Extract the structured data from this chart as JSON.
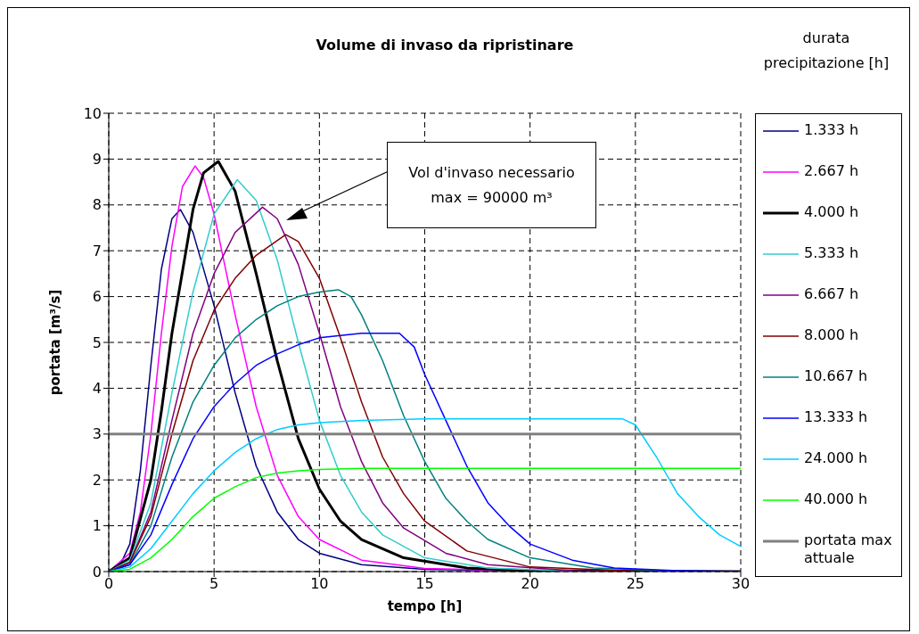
{
  "chart_data": {
    "type": "line",
    "title": "Volume di invaso da ripristinare",
    "xlabel": "tempo [h]",
    "ylabel": "portata [m³/s]",
    "legend_title": "durata precipitazione [h]",
    "legend": "right",
    "grid": true,
    "marker": "none",
    "line_style": "solid",
    "xlim": [
      0,
      30
    ],
    "xticks": [
      0,
      5,
      10,
      15,
      20,
      25,
      30
    ],
    "ylim": [
      0,
      10
    ],
    "yticks": [
      0,
      1,
      2,
      3,
      4,
      5,
      6,
      7,
      8,
      9,
      10
    ],
    "annotations": [
      "Vol d'invaso necessario\nmax = 90000 m³"
    ],
    "series": [
      {
        "name": "1.333 h",
        "color": "#000080",
        "x": [
          0,
          0.5,
          1,
          1.5,
          2,
          2.5,
          3,
          3.4,
          4,
          5,
          6,
          7,
          8,
          9,
          10,
          12,
          15,
          20,
          30
        ],
        "values": [
          0,
          0.1,
          0.6,
          2.2,
          4.5,
          6.6,
          7.7,
          7.9,
          7.4,
          5.8,
          3.9,
          2.3,
          1.3,
          0.7,
          0.4,
          0.15,
          0.05,
          0.01,
          0
        ]
      },
      {
        "name": "2.667 h",
        "color": "#ff00ff",
        "x": [
          0,
          1,
          1.5,
          2,
          2.5,
          3,
          3.5,
          4.1,
          4.5,
          5,
          6,
          7,
          8,
          9,
          10,
          12,
          15,
          20,
          30
        ],
        "values": [
          0,
          0.4,
          1.3,
          3,
          5.2,
          7.1,
          8.4,
          8.85,
          8.6,
          7.8,
          5.6,
          3.6,
          2.1,
          1.2,
          0.7,
          0.25,
          0.07,
          0.01,
          0
        ]
      },
      {
        "name": "4.000 h",
        "color": "#000000",
        "x": [
          0,
          1,
          2,
          2.5,
          3,
          4,
          4.5,
          5.2,
          6,
          7,
          8,
          9,
          10,
          11,
          12,
          14,
          17,
          20,
          30
        ],
        "values": [
          0,
          0.3,
          2,
          3.5,
          5.2,
          7.9,
          8.7,
          8.95,
          8.3,
          6.5,
          4.6,
          2.9,
          1.8,
          1.1,
          0.7,
          0.3,
          0.08,
          0.02,
          0
        ]
      },
      {
        "name": "5.333 h",
        "color": "#33cccc",
        "x": [
          0,
          1,
          2,
          3,
          4,
          5,
          6.1,
          7,
          8,
          9,
          10,
          11,
          12,
          13,
          15,
          18,
          22,
          30
        ],
        "values": [
          0,
          0.25,
          1.5,
          3.9,
          6.1,
          7.8,
          8.55,
          8.1,
          6.8,
          5,
          3.3,
          2.1,
          1.3,
          0.8,
          0.3,
          0.08,
          0.01,
          0
        ]
      },
      {
        "name": "6.667 h",
        "color": "#800080",
        "x": [
          0,
          1,
          2,
          3,
          4,
          5,
          6,
          7.3,
          8,
          9,
          10,
          11,
          12,
          13,
          14,
          16,
          18,
          22,
          30
        ],
        "values": [
          0,
          0.2,
          1.3,
          3.3,
          5.2,
          6.5,
          7.4,
          7.95,
          7.7,
          6.7,
          5.2,
          3.6,
          2.4,
          1.5,
          0.95,
          0.4,
          0.15,
          0.02,
          0
        ]
      },
      {
        "name": "8.000 h",
        "color": "#800000",
        "x": [
          0,
          1,
          2,
          3,
          4,
          5,
          6,
          7,
          8.4,
          9,
          10,
          11,
          12,
          13,
          14,
          15,
          17,
          20,
          25,
          30
        ],
        "values": [
          0,
          0.2,
          1.2,
          3,
          4.6,
          5.7,
          6.4,
          6.9,
          7.35,
          7.2,
          6.4,
          5.1,
          3.7,
          2.5,
          1.7,
          1.1,
          0.45,
          0.1,
          0.01,
          0
        ]
      },
      {
        "name": "10.667 h",
        "color": "#008080",
        "x": [
          0,
          1,
          2,
          3,
          4,
          5,
          6,
          7,
          8,
          9,
          10,
          10.9,
          11.5,
          12,
          13,
          14,
          15,
          16,
          17,
          18,
          20,
          23,
          27,
          30
        ],
        "values": [
          0,
          0.15,
          1,
          2.5,
          3.7,
          4.5,
          5.1,
          5.5,
          5.8,
          6,
          6.1,
          6.15,
          6,
          5.6,
          4.6,
          3.4,
          2.4,
          1.6,
          1.1,
          0.7,
          0.3,
          0.08,
          0.01,
          0
        ]
      },
      {
        "name": "13.333 h",
        "color": "#0000ff",
        "x": [
          0,
          1,
          2,
          3,
          4,
          5,
          6,
          7,
          8,
          9,
          10,
          11,
          12,
          13.8,
          14.5,
          15,
          16,
          17,
          18,
          19,
          20,
          22,
          24,
          27,
          30
        ],
        "values": [
          0,
          0.15,
          0.8,
          1.9,
          2.9,
          3.6,
          4.1,
          4.5,
          4.75,
          4.95,
          5.1,
          5.15,
          5.2,
          5.2,
          4.9,
          4.3,
          3.3,
          2.3,
          1.5,
          1,
          0.6,
          0.25,
          0.08,
          0.02,
          0
        ]
      },
      {
        "name": "24.000 h",
        "color": "#00ccff",
        "x": [
          0,
          1,
          2,
          3,
          4,
          5,
          6,
          7,
          8,
          9,
          10,
          12,
          15,
          24.4,
          25,
          26,
          27,
          28,
          29,
          30
        ],
        "values": [
          0,
          0.1,
          0.5,
          1.1,
          1.7,
          2.2,
          2.6,
          2.9,
          3.1,
          3.2,
          3.25,
          3.3,
          3.33,
          3.33,
          3.2,
          2.5,
          1.7,
          1.2,
          0.8,
          0.55
        ]
      },
      {
        "name": "40.000 h",
        "color": "#00ff00",
        "x": [
          0,
          1,
          2,
          3,
          4,
          5,
          6,
          7,
          8,
          9,
          10,
          12,
          30
        ],
        "values": [
          0,
          0.05,
          0.3,
          0.7,
          1.2,
          1.6,
          1.85,
          2.05,
          2.15,
          2.2,
          2.23,
          2.25,
          2.25
        ]
      },
      {
        "name": "portata max attuale",
        "color": "#808080",
        "x": [
          0,
          30
        ],
        "values": [
          3,
          3
        ]
      }
    ]
  }
}
